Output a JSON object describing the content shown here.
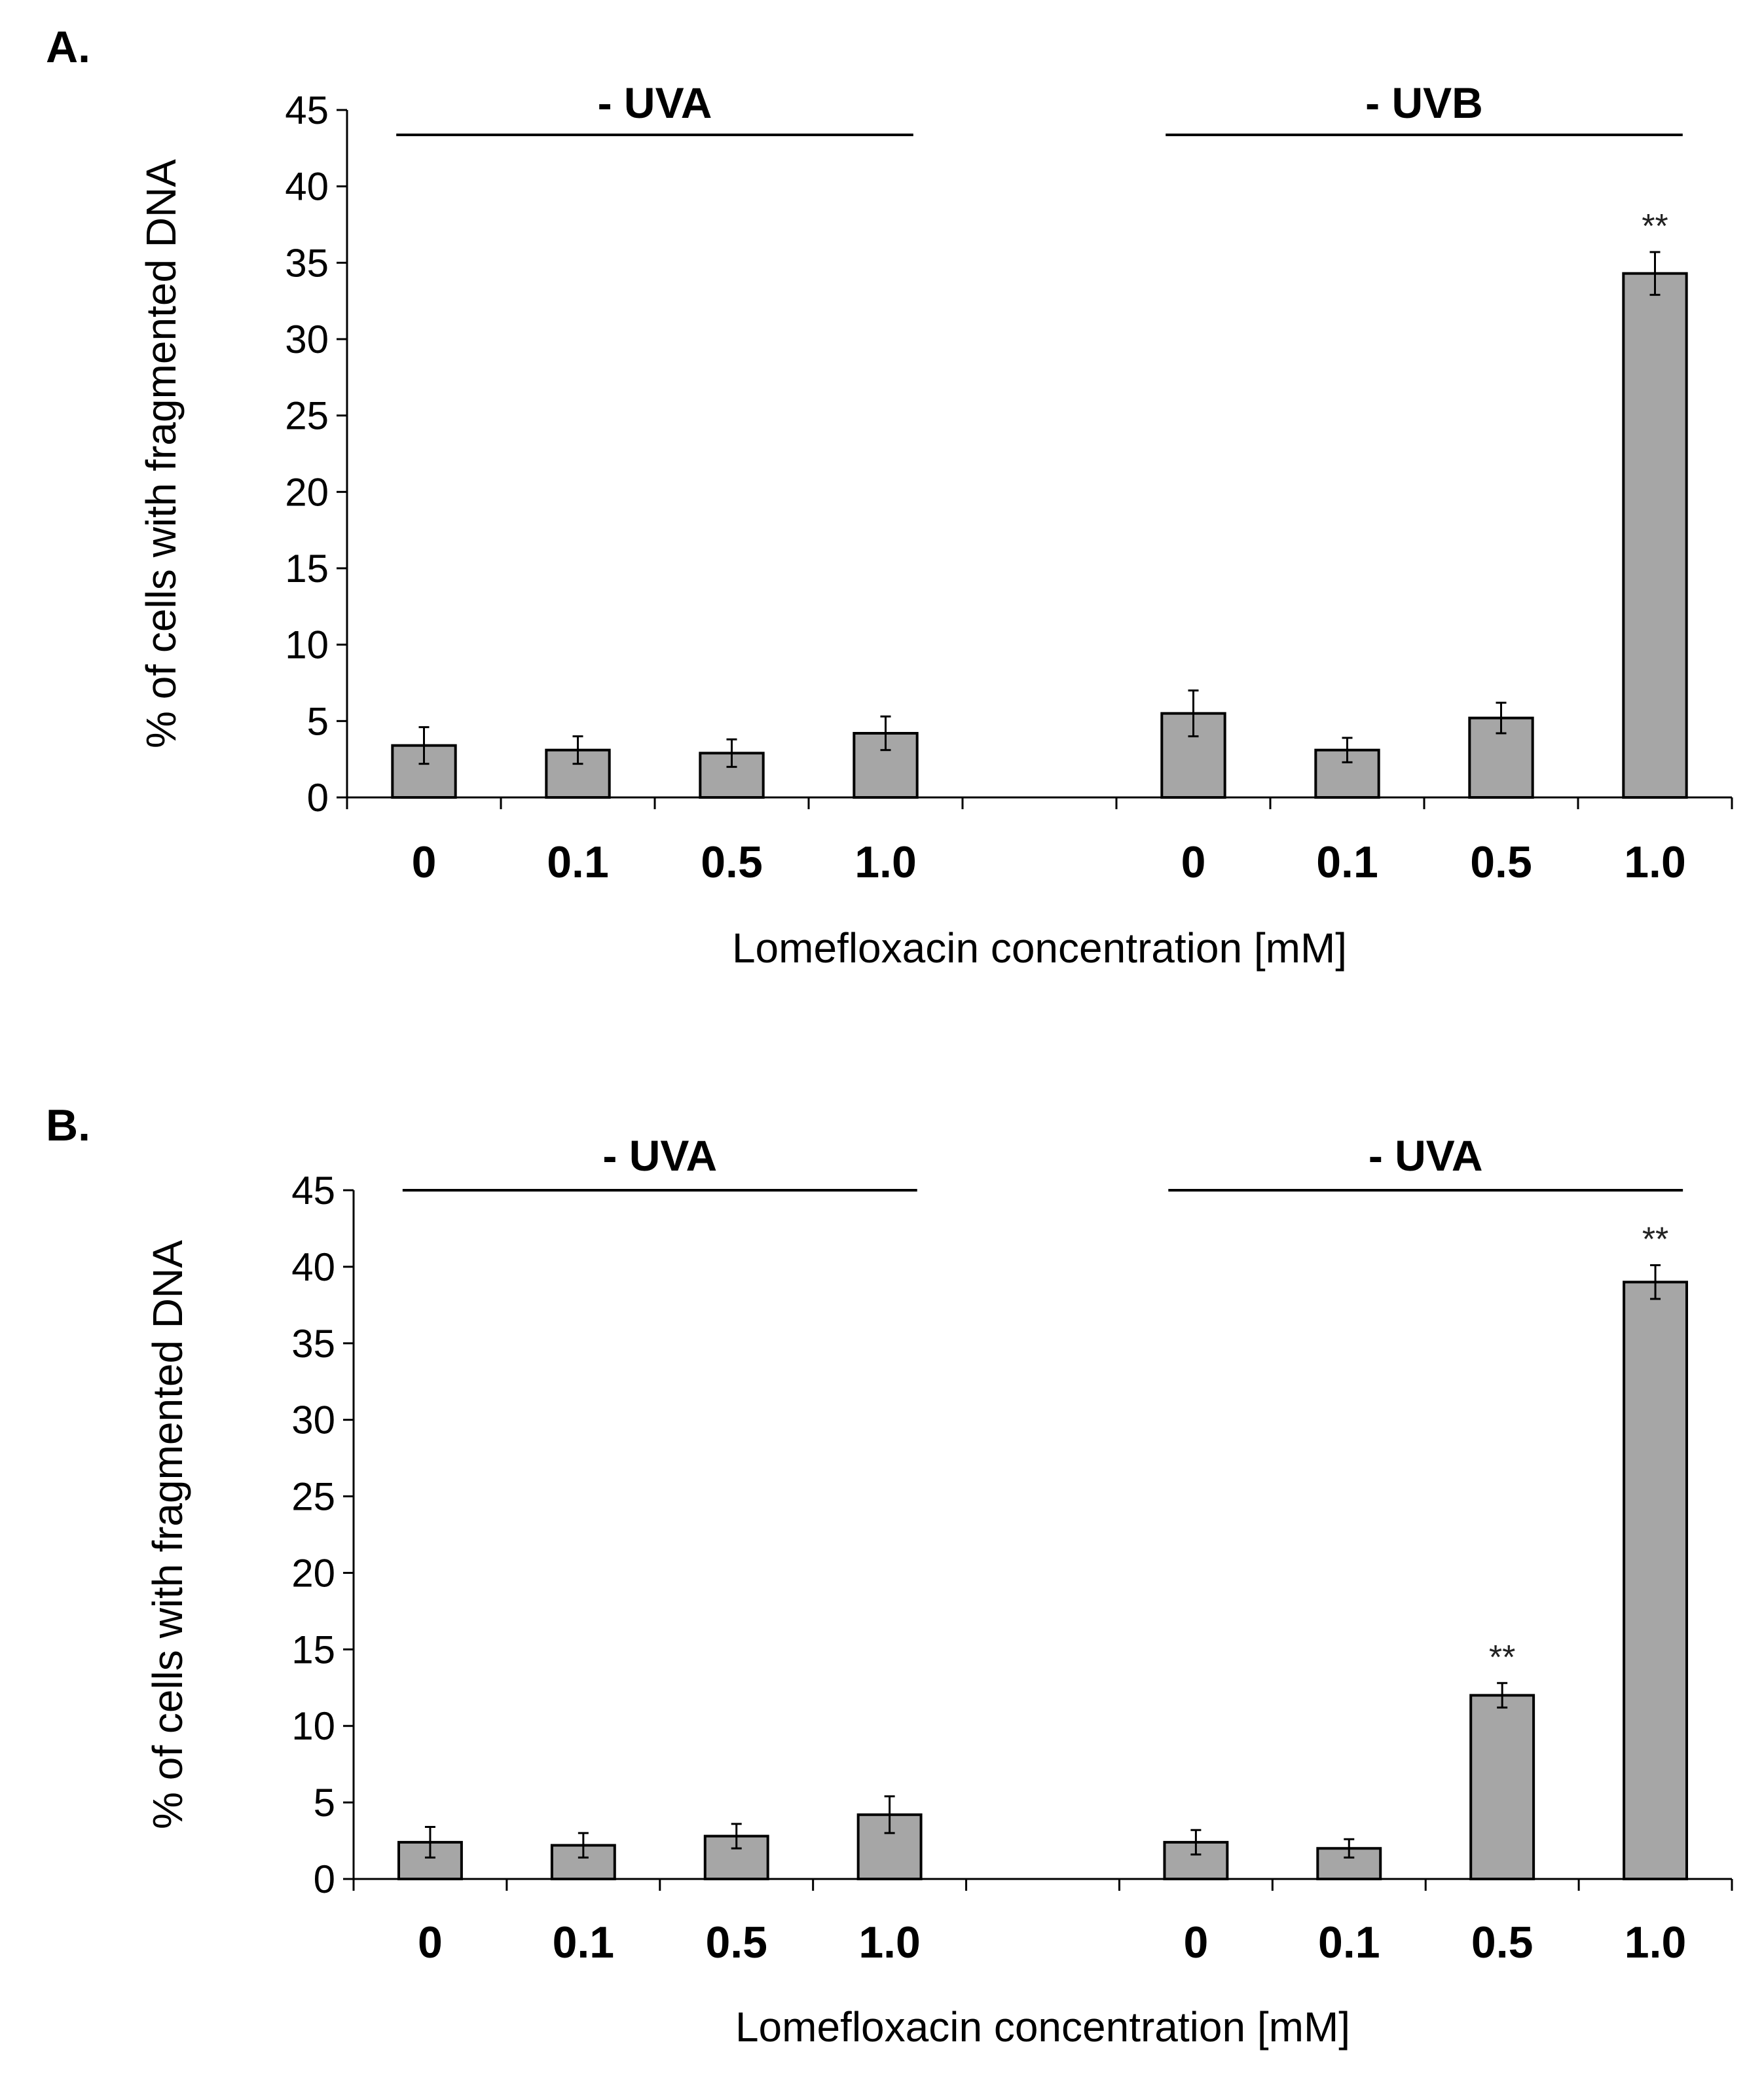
{
  "chart_data": [
    {
      "type": "bar",
      "panel": "A.",
      "ylabel": "% of cells with fragmented DNA",
      "xlabel": "Lomefloxacin concentration [mM]",
      "ylim": [
        0,
        45
      ],
      "yticks": [
        0,
        5,
        10,
        15,
        20,
        25,
        30,
        35,
        40,
        45
      ],
      "bar_color": "#a6a6a6",
      "groups": [
        {
          "label": "- UVA",
          "categories": [
            "0",
            "0.1",
            "0.5",
            "1.0"
          ],
          "values": [
            3.4,
            3.1,
            2.9,
            4.2
          ],
          "errors": [
            1.2,
            0.9,
            0.9,
            1.1
          ],
          "significance": [
            "",
            "",
            "",
            ""
          ]
        },
        {
          "label": "- UVB",
          "categories": [
            "0",
            "0.1",
            "0.5",
            "1.0"
          ],
          "values": [
            5.5,
            3.1,
            5.2,
            34.3
          ],
          "errors": [
            1.5,
            0.8,
            1.0,
            1.4
          ],
          "significance": [
            "",
            "",
            "",
            "**"
          ]
        }
      ]
    },
    {
      "type": "bar",
      "panel": "B.",
      "ylabel": "% of cells with fragmented DNA",
      "xlabel": "Lomefloxacin concentration [mM]",
      "ylim": [
        0,
        45
      ],
      "yticks": [
        0,
        5,
        10,
        15,
        20,
        25,
        30,
        35,
        40,
        45
      ],
      "bar_color": "#a6a6a6",
      "groups": [
        {
          "label": "- UVA",
          "categories": [
            "0",
            "0.1",
            "0.5",
            "1.0"
          ],
          "values": [
            2.4,
            2.2,
            2.8,
            4.2
          ],
          "errors": [
            1.0,
            0.8,
            0.8,
            1.2
          ],
          "significance": [
            "",
            "",
            "",
            ""
          ]
        },
        {
          "label": "- UVA",
          "categories": [
            "0",
            "0.1",
            "0.5",
            "1.0"
          ],
          "values": [
            2.4,
            2.0,
            12.0,
            39.0
          ],
          "errors": [
            0.8,
            0.6,
            0.8,
            1.1
          ],
          "significance": [
            "",
            "",
            "**",
            "**"
          ]
        }
      ]
    }
  ]
}
